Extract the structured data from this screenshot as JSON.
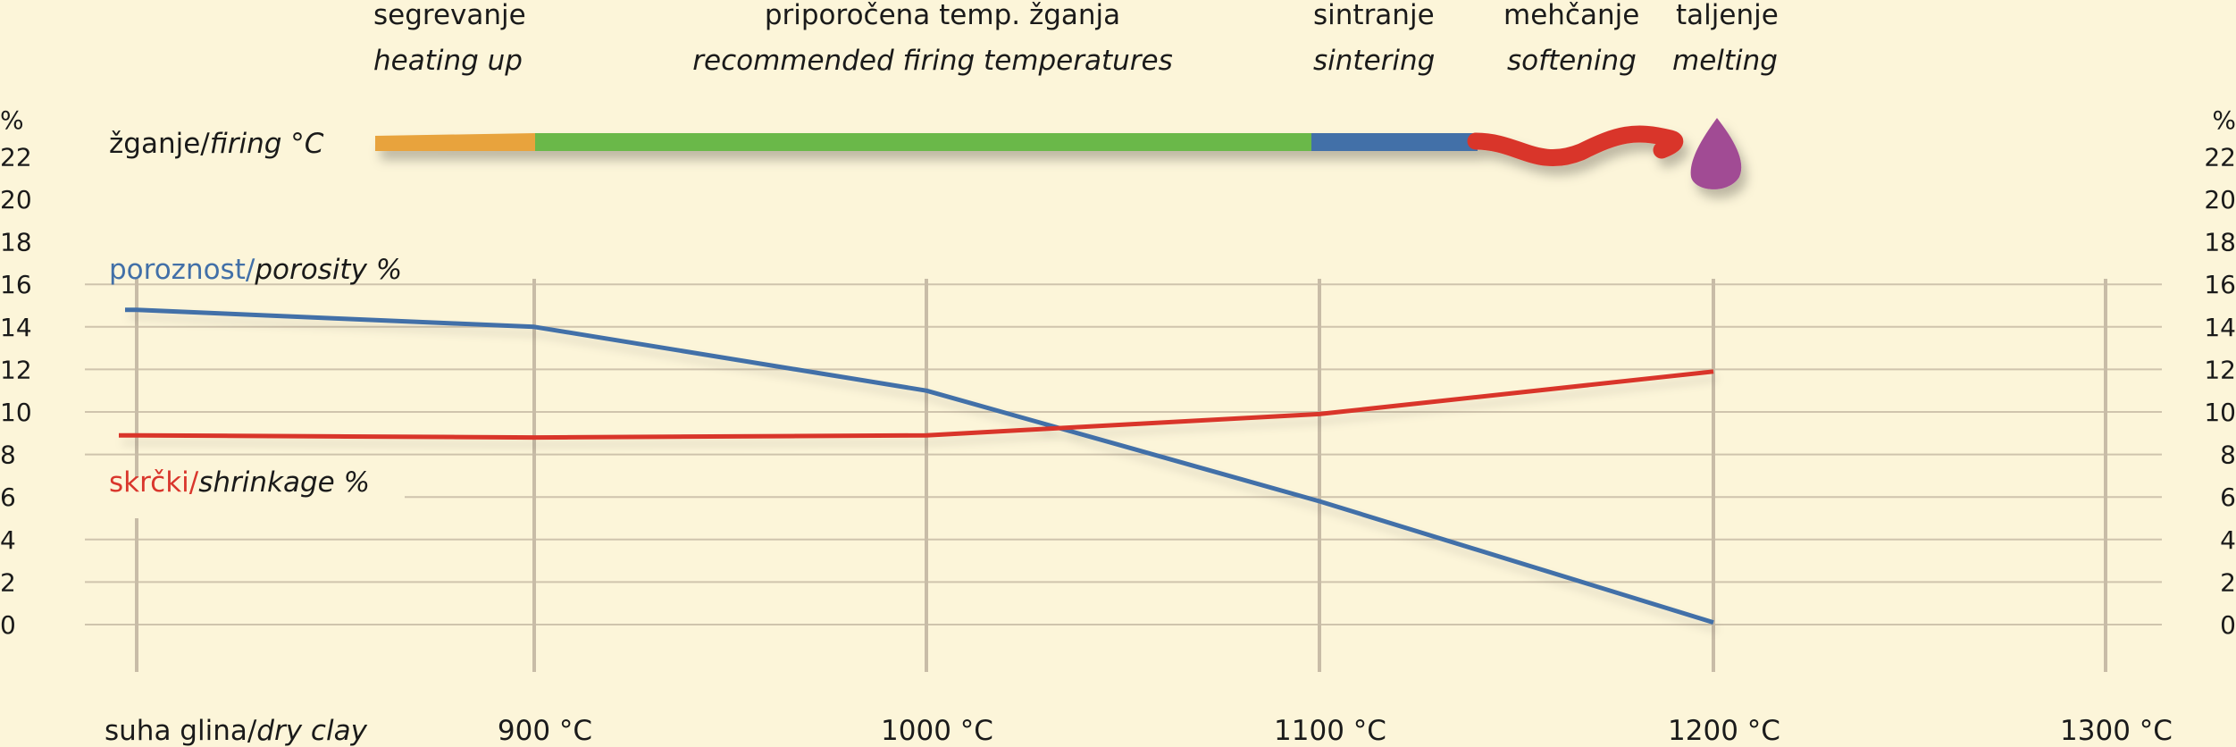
{
  "phases": [
    {
      "sl": "segrevanje",
      "en": "heating up",
      "color": "#e8a33d"
    },
    {
      "sl": "priporočena temp. žganja",
      "en": "recommended firing temperatures",
      "color": "#6ab84a"
    },
    {
      "sl": "sintranje",
      "en": "sintering",
      "color": "#4270a8"
    },
    {
      "sl": "mehčanje",
      "en": "softening",
      "color": "#d9362c"
    },
    {
      "sl": "taljenje",
      "en": "melting",
      "color": "#a14b94"
    }
  ],
  "firing_label": {
    "sl": "žganje/",
    "en": "firing °C"
  },
  "porosity_label": {
    "sl": "poroznost/",
    "en": "porosity %",
    "color": "#4270a8"
  },
  "shrinkage_label": {
    "sl": "skrčki/",
    "en": "shrinkage %",
    "color": "#d9362c"
  },
  "dry_clay_label": {
    "sl": "suha glina/",
    "en": "dry clay"
  },
  "chart_data": {
    "type": "line",
    "x_categories": [
      "suha glina/dry clay",
      "900 °C",
      "1000 °C",
      "1100 °C",
      "1200 °C",
      "1300 °C"
    ],
    "x_tick_labels": [
      "900 °C",
      "1000 °C",
      "1100 °C",
      "1200 °C",
      "1300 °C"
    ],
    "y_axis_unit": "%",
    "y_ticks": [
      0,
      2,
      4,
      6,
      8,
      10,
      12,
      14,
      16,
      18,
      20,
      22
    ],
    "ylim": [
      0,
      22
    ],
    "grid": true,
    "series": [
      {
        "name": "poroznost/porosity %",
        "color": "#4270a8",
        "values": [
          14.8,
          14,
          11,
          5.8,
          0.1
        ]
      },
      {
        "name": "skrčki/shrinkage %",
        "color": "#d9362c",
        "values": [
          8.9,
          8.8,
          8.9,
          9.9,
          11.9
        ]
      }
    ]
  }
}
